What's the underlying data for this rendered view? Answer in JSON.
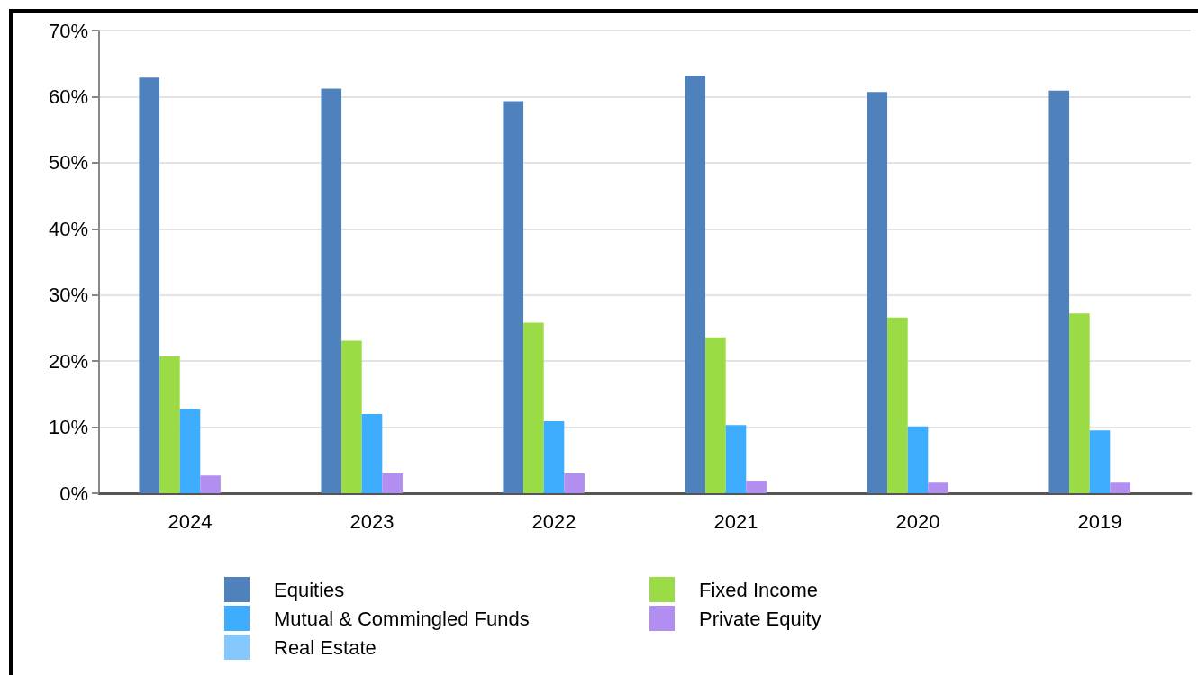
{
  "chart_data": {
    "type": "bar",
    "categories": [
      "2024",
      "2023",
      "2022",
      "2021",
      "2020",
      "2019"
    ],
    "series": [
      {
        "name": "Equities",
        "color": "#4f81bd",
        "values": [
          62.9,
          61.2,
          59.3,
          63.2,
          60.7,
          60.9
        ]
      },
      {
        "name": "Fixed Income",
        "color": "#9bdb45",
        "values": [
          20.7,
          23.1,
          25.8,
          23.6,
          26.6,
          27.2
        ]
      },
      {
        "name": "Mutual & Commingled Funds",
        "color": "#3fadfd",
        "values": [
          12.8,
          12.0,
          10.9,
          10.3,
          10.1,
          9.5
        ]
      },
      {
        "name": "Private Equity",
        "color": "#b28ef0",
        "values": [
          2.7,
          3.0,
          3.0,
          1.9,
          1.6,
          1.6
        ]
      },
      {
        "name": "Real Estate",
        "color": "#84c8fd",
        "values": [
          0,
          0,
          0,
          0,
          0,
          0
        ]
      }
    ],
    "ylim": [
      0,
      70
    ],
    "yticks": [
      {
        "value": 0,
        "label": "0%"
      },
      {
        "value": 10,
        "label": "10%"
      },
      {
        "value": 20,
        "label": "20%"
      },
      {
        "value": 30,
        "label": "30%"
      },
      {
        "value": 40,
        "label": "40%"
      },
      {
        "value": 50,
        "label": "50%"
      },
      {
        "value": 60,
        "label": "60%"
      },
      {
        "value": 70,
        "label": "70%"
      }
    ],
    "grid": "y",
    "legend": "bottom"
  }
}
